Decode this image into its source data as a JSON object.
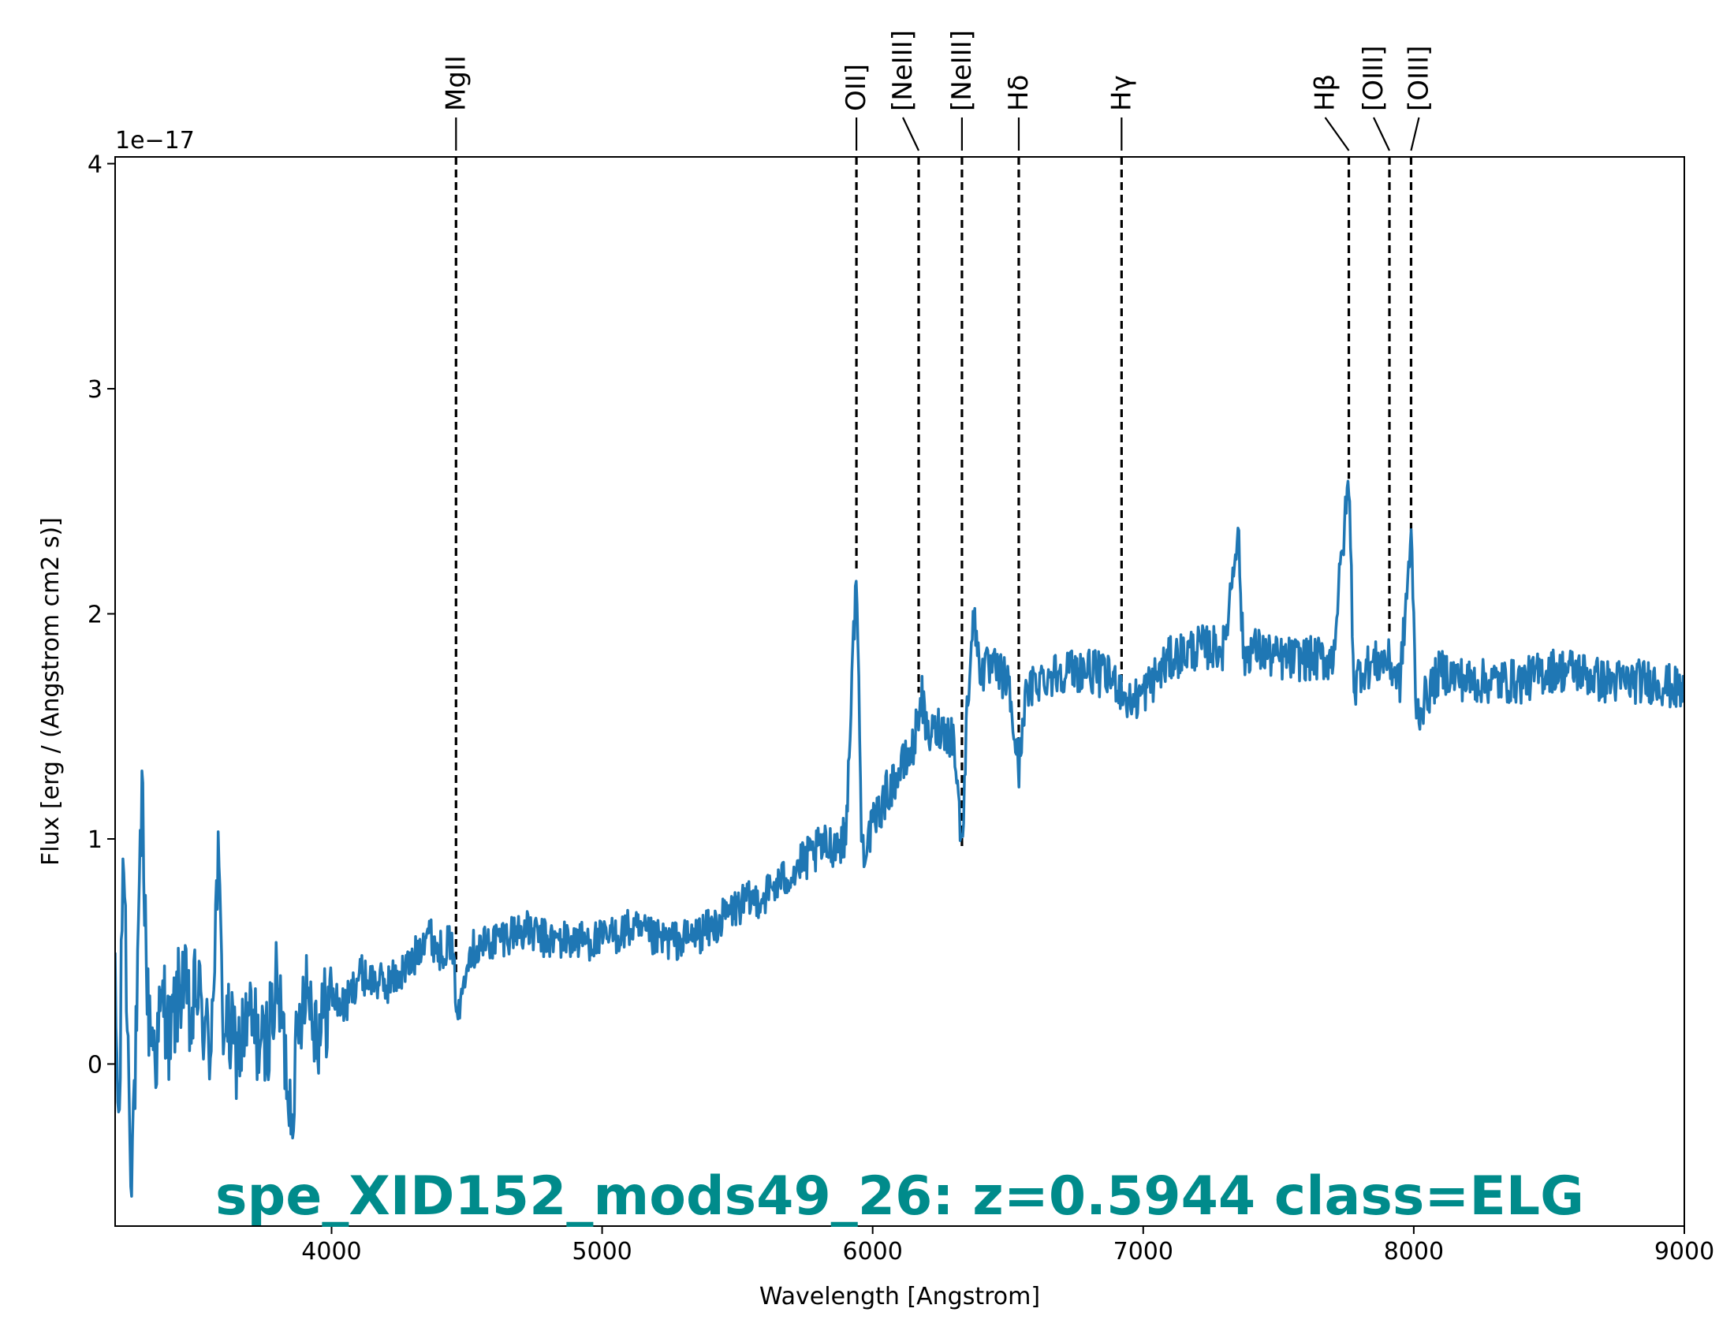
{
  "chart_data": {
    "type": "line",
    "title": "spe_XID152_mods49_26: z=0.5944 class=ELG",
    "xlabel": "Wavelength [Angstrom]",
    "ylabel": "Flux [erg / (Angstrom cm2 s)]",
    "y_scale_label": "1e−17",
    "xlim": [
      3200,
      9000
    ],
    "ylim": [
      -0.72,
      4.03
    ],
    "x_ticks": [
      4000,
      5000,
      6000,
      7000,
      8000,
      9000
    ],
    "y_ticks": [
      0,
      1,
      2,
      3,
      4
    ],
    "grid": false,
    "legend": "none",
    "colors": {
      "spectrum": "#1f77b4",
      "title": "#008b8b",
      "lines": "#000000"
    },
    "spectrum_anchors": [
      [
        3200,
        0.3
      ],
      [
        3215,
        -0.35
      ],
      [
        3230,
        1.05
      ],
      [
        3245,
        0.2
      ],
      [
        3260,
        -0.45
      ],
      [
        3280,
        0.15
      ],
      [
        3300,
        1.22
      ],
      [
        3320,
        0.25
      ],
      [
        3350,
        0.05
      ],
      [
        3380,
        0.3
      ],
      [
        3400,
        0.1
      ],
      [
        3450,
        0.4
      ],
      [
        3480,
        0.15
      ],
      [
        3500,
        0.35
      ],
      [
        3550,
        0.05
      ],
      [
        3580,
        0.88
      ],
      [
        3600,
        0.2
      ],
      [
        3650,
        0.05
      ],
      [
        3700,
        0.2
      ],
      [
        3750,
        0.05
      ],
      [
        3800,
        0.35
      ],
      [
        3850,
        -0.2
      ],
      [
        3900,
        0.4
      ],
      [
        3950,
        0.15
      ],
      [
        4000,
        0.3
      ],
      [
        4050,
        0.25
      ],
      [
        4100,
        0.4
      ],
      [
        4200,
        0.35
      ],
      [
        4300,
        0.45
      ],
      [
        4350,
        0.6
      ],
      [
        4400,
        0.5
      ],
      [
        4440,
        0.55
      ],
      [
        4470,
        0.2
      ],
      [
        4500,
        0.5
      ],
      [
        4600,
        0.55
      ],
      [
        4700,
        0.6
      ],
      [
        4800,
        0.55
      ],
      [
        4900,
        0.55
      ],
      [
        5000,
        0.55
      ],
      [
        5100,
        0.6
      ],
      [
        5200,
        0.55
      ],
      [
        5300,
        0.55
      ],
      [
        5400,
        0.6
      ],
      [
        5500,
        0.7
      ],
      [
        5600,
        0.75
      ],
      [
        5700,
        0.85
      ],
      [
        5800,
        0.95
      ],
      [
        5900,
        1.0
      ],
      [
        5940,
        2.2
      ],
      [
        5960,
        0.95
      ],
      [
        6000,
        1.05
      ],
      [
        6050,
        1.2
      ],
      [
        6100,
        1.3
      ],
      [
        6150,
        1.4
      ],
      [
        6180,
        1.65
      ],
      [
        6200,
        1.45
      ],
      [
        6250,
        1.5
      ],
      [
        6300,
        1.45
      ],
      [
        6330,
        0.95
      ],
      [
        6350,
        1.6
      ],
      [
        6370,
        2.0
      ],
      [
        6400,
        1.75
      ],
      [
        6450,
        1.75
      ],
      [
        6500,
        1.7
      ],
      [
        6540,
        1.3
      ],
      [
        6560,
        1.6
      ],
      [
        6600,
        1.7
      ],
      [
        6700,
        1.75
      ],
      [
        6800,
        1.75
      ],
      [
        6900,
        1.7
      ],
      [
        6950,
        1.6
      ],
      [
        7000,
        1.65
      ],
      [
        7100,
        1.8
      ],
      [
        7200,
        1.85
      ],
      [
        7300,
        1.85
      ],
      [
        7350,
        2.4
      ],
      [
        7370,
        1.8
      ],
      [
        7400,
        1.85
      ],
      [
        7500,
        1.8
      ],
      [
        7600,
        1.8
      ],
      [
        7700,
        1.8
      ],
      [
        7760,
        2.6
      ],
      [
        7780,
        1.65
      ],
      [
        7800,
        1.75
      ],
      [
        7900,
        1.8
      ],
      [
        7950,
        1.7
      ],
      [
        7990,
        2.35
      ],
      [
        8010,
        1.55
      ],
      [
        8100,
        1.75
      ],
      [
        8200,
        1.7
      ],
      [
        8300,
        1.7
      ],
      [
        8400,
        1.7
      ],
      [
        8500,
        1.75
      ],
      [
        8600,
        1.75
      ],
      [
        8700,
        1.7
      ],
      [
        8800,
        1.7
      ],
      [
        8900,
        1.7
      ],
      [
        9000,
        1.65
      ]
    ],
    "spectral_lines": [
      {
        "name": "MgII",
        "wavelength": 4460,
        "label_offset": 0,
        "line_ymin": 0.4
      },
      {
        "name": "OII]",
        "wavelength": 5940,
        "label_offset": 0,
        "line_ymin": 2.2
      },
      {
        "name": "[NeIII]",
        "wavelength": 6170,
        "label_offset": -20,
        "line_ymin": 1.65
      },
      {
        "name": "[NeIII]",
        "wavelength": 6330,
        "label_offset": 0,
        "line_ymin": 0.95
      },
      {
        "name": "Hδ",
        "wavelength": 6540,
        "label_offset": 0,
        "line_ymin": 1.27
      },
      {
        "name": "Hγ",
        "wavelength": 6920,
        "label_offset": 0,
        "line_ymin": 1.6
      },
      {
        "name": "Hβ",
        "wavelength": 7760,
        "label_offset": -30,
        "line_ymin": 2.6
      },
      {
        "name": "[OIII]",
        "wavelength": 7910,
        "label_offset": -20,
        "line_ymin": 1.9
      },
      {
        "name": "[OIII]",
        "wavelength": 7990,
        "label_offset": 10,
        "line_ymin": 2.35
      }
    ]
  }
}
